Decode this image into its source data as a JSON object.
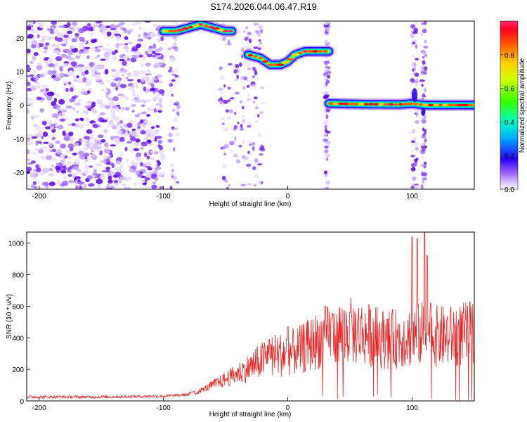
{
  "title": "S174.2026.044.06.47.R19",
  "chart_data": [
    {
      "type": "heatmap",
      "xlabel": "Height of straight line (km)",
      "ylabel": "Frequency (Hz)",
      "xlim": [
        -210,
        150
      ],
      "ylim": [
        -25,
        25
      ],
      "xticks": [
        -200,
        -100,
        0,
        100
      ],
      "yticks": [
        -20,
        -10,
        0,
        10,
        20
      ],
      "colorbar": {
        "label": "Normalized spectral amplitude",
        "range": [
          0,
          1
        ],
        "ticks": [
          0.0,
          0.2,
          0.4,
          0.6,
          0.8
        ],
        "colormap": [
          "#ffffff",
          "#c9a6ff",
          "#7b2cff",
          "#1a00ff",
          "#00c8ff",
          "#00ff80",
          "#80ff00",
          "#ffff00",
          "#ff8000",
          "#ff0000",
          "#ff2a6d"
        ]
      },
      "ridge": [
        {
          "x_range": [
            -100,
            -45
          ],
          "freq_points": [
            [
              -100,
              22
            ],
            [
              -90,
              22
            ],
            [
              -80,
              23
            ],
            [
              -70,
              24
            ],
            [
              -60,
              23
            ],
            [
              -50,
              22
            ]
          ]
        },
        {
          "x_range": [
            -32,
            33
          ],
          "freq_points": [
            [
              -32,
              15
            ],
            [
              -22,
              14
            ],
            [
              -14,
              12
            ],
            [
              -6,
              12
            ],
            [
              0,
              13
            ],
            [
              6,
              15
            ],
            [
              14,
              16
            ],
            [
              24,
              16
            ],
            [
              32,
              16
            ]
          ]
        },
        {
          "x_range": [
            33,
            150
          ],
          "freq_points": [
            [
              33,
              0.5
            ],
            [
              60,
              0.3
            ],
            [
              90,
              0.2
            ],
            [
              100,
              0.5
            ],
            [
              110,
              0
            ],
            [
              150,
              0
            ]
          ]
        }
      ],
      "noise_region": [
        -210,
        -100
      ]
    },
    {
      "type": "line",
      "xlabel": "Height of straight line (km)",
      "ylabel": "SNR (10 * v/v)",
      "xlim": [
        -210,
        150
      ],
      "ylim": [
        0,
        1070
      ],
      "xticks": [
        -200,
        -100,
        0,
        100
      ],
      "yticks": [
        0,
        200,
        400,
        600,
        800,
        1000
      ],
      "color": "#ee2222",
      "envelope": [
        [
          -210,
          25
        ],
        [
          -180,
          25
        ],
        [
          -150,
          25
        ],
        [
          -120,
          28
        ],
        [
          -100,
          30
        ],
        [
          -80,
          40
        ],
        [
          -70,
          90
        ],
        [
          -60,
          130
        ],
        [
          -50,
          160
        ],
        [
          -40,
          190
        ],
        [
          -30,
          220
        ],
        [
          -20,
          250
        ],
        [
          -10,
          270
        ],
        [
          0,
          280
        ],
        [
          10,
          300
        ],
        [
          20,
          340
        ],
        [
          30,
          380
        ],
        [
          40,
          400
        ],
        [
          50,
          410
        ],
        [
          60,
          400
        ],
        [
          70,
          380
        ],
        [
          80,
          360
        ],
        [
          90,
          370
        ],
        [
          100,
          380
        ],
        [
          110,
          400
        ],
        [
          120,
          380
        ],
        [
          130,
          380
        ],
        [
          140,
          390
        ],
        [
          150,
          400
        ]
      ],
      "spikes": [
        [
          -15,
          390
        ],
        [
          0,
          470
        ],
        [
          35,
          520
        ],
        [
          50,
          560
        ],
        [
          80,
          520
        ],
        [
          100,
          1040
        ],
        [
          104,
          1030
        ],
        [
          110,
          1070
        ],
        [
          112,
          920
        ],
        [
          115,
          620
        ]
      ]
    }
  ]
}
